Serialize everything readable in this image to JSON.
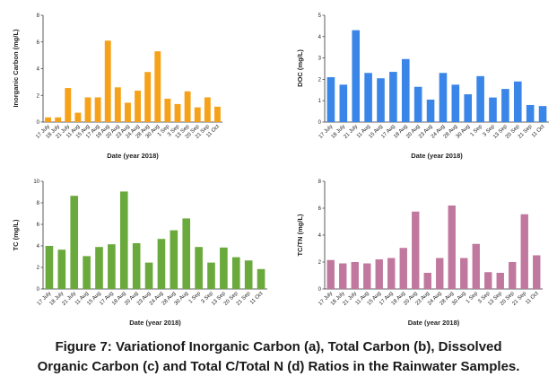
{
  "caption": {
    "line1": "Figure 7: Variationof Inorganic Carbon (a), Total Carbon (b), Dissolved",
    "line2": "Organic Carbon (c) and Total C/Total N (d) Ratios in the Rainwater Samples."
  },
  "chart_data": [
    {
      "type": "bar",
      "color": "#f5a21a",
      "categories": [
        "17 July",
        "18 July",
        "21 July",
        "11 Aug",
        "15 Aug",
        "17 Aug",
        "18 Aug",
        "20 Aug",
        "23 Aug",
        "24 Aug",
        "28 Aug",
        "30 Aug",
        "1 Sep",
        "3 Sep",
        "13 Sep",
        "20 Sep",
        "21 Sep",
        "11 Oct"
      ],
      "values": [
        0.35,
        0.35,
        2.55,
        0.7,
        1.85,
        1.85,
        6.1,
        2.6,
        1.45,
        2.35,
        3.75,
        5.3,
        1.75,
        1.35,
        2.3,
        1.1,
        1.85,
        1.15
      ],
      "ylim": [
        0,
        8
      ],
      "yticks": [
        "0",
        "2",
        "4",
        "6",
        "8"
      ],
      "xlabel": "Date (year 2018)",
      "ylabel": "Inorganic Carbon (mg/L)",
      "grid": false
    },
    {
      "type": "bar",
      "color": "#3a86e8",
      "categories": [
        "17 July",
        "18 July",
        "21 July",
        "11 Aug",
        "15 Aug",
        "17 Aug",
        "18 Aug",
        "20 Aug",
        "23 Aug",
        "24 Aug",
        "28 Aug",
        "30 Aug",
        "1 Sep",
        "3 Sep",
        "13 Sep",
        "20 Sep",
        "21 Sep",
        "11 Oct"
      ],
      "values": [
        2.1,
        1.75,
        4.3,
        2.3,
        2.05,
        2.35,
        2.95,
        1.65,
        1.05,
        2.3,
        1.75,
        1.3,
        2.15,
        1.15,
        1.55,
        1.9,
        0.8,
        0.75
      ],
      "ylim": [
        0,
        5
      ],
      "yticks": [
        "0",
        "1",
        "2",
        "3",
        "4",
        "5"
      ],
      "xlabel": "Date (year 2018)",
      "ylabel": "DOC (mg/L)",
      "grid": false
    },
    {
      "type": "bar",
      "color": "#6aaa3c",
      "categories": [
        "17 July",
        "18 July",
        "21 July",
        "11 Aug",
        "15 Aug",
        "17 Aug",
        "18 Aug",
        "20 Aug",
        "23 Aug",
        "24 Aug",
        "28 Aug",
        "30 Aug",
        "1 Sep",
        "3 Sep",
        "13 Sep",
        "20 Sep",
        "21 Sep",
        "11 Oct"
      ],
      "values": [
        4.0,
        3.65,
        8.65,
        3.05,
        3.9,
        4.15,
        9.05,
        4.25,
        2.45,
        4.65,
        5.45,
        6.55,
        3.9,
        2.45,
        3.85,
        2.95,
        2.65,
        1.85
      ],
      "ylim": [
        0,
        10
      ],
      "yticks": [
        "0",
        "2",
        "4",
        "6",
        "8",
        "10"
      ],
      "xlabel": "Date (year 2018)",
      "ylabel": "TC (mg/L)",
      "grid": false
    },
    {
      "type": "bar",
      "color": "#c0789e",
      "categories": [
        "17 July",
        "18 July",
        "21 July",
        "11 Aug",
        "15 Aug",
        "17 Aug",
        "18 Aug",
        "20 Aug",
        "23 Aug",
        "24 Aug",
        "28 Aug",
        "30 Aug",
        "1 Sep",
        "3 Sep",
        "13 Sep",
        "20 Sep",
        "21 Sep",
        "11 Oct"
      ],
      "values": [
        2.15,
        1.9,
        2.0,
        1.9,
        2.2,
        2.3,
        3.05,
        5.75,
        1.2,
        2.3,
        6.2,
        2.3,
        3.35,
        1.25,
        1.2,
        2.0,
        5.55,
        2.5
      ],
      "ylim": [
        0,
        8
      ],
      "yticks": [
        "0",
        "2",
        "4",
        "6",
        "8"
      ],
      "xlabel": "Date (year 2018)",
      "ylabel": "TC/TN (mg/L)",
      "grid": false
    }
  ]
}
